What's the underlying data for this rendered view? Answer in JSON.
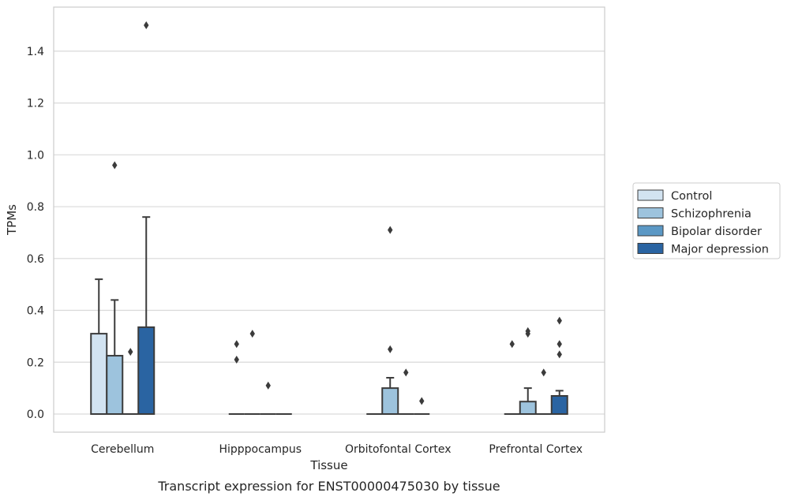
{
  "caption": "Transcript expression for ENST00000475030 by tissue",
  "chart_data": {
    "type": "box",
    "title": "",
    "xlabel": "Tissue",
    "ylabel": "TPMs",
    "ylim": [
      -0.07,
      1.57
    ],
    "yticks": [
      "0.0",
      "0.2",
      "0.4",
      "0.6",
      "0.8",
      "1.0",
      "1.2",
      "1.4"
    ],
    "grid": "horizontal",
    "legend_position": "right",
    "categories": [
      "Cerebellum",
      "Hipppocampus",
      "Orbitofontal Cortex",
      "Prefrontal Cortex"
    ],
    "series": [
      {
        "name": "Control",
        "color": "#d2e3f1",
        "boxes": [
          {
            "q1": 0,
            "median": 0,
            "q3": 0.31,
            "whislo": 0,
            "whishi": 0.52,
            "fliers": []
          },
          {
            "q1": 0,
            "median": 0,
            "q3": 0,
            "whislo": 0,
            "whishi": 0,
            "fliers": [
              0.21,
              0.27
            ]
          },
          {
            "q1": 0,
            "median": 0,
            "q3": 0,
            "whislo": 0,
            "whishi": 0,
            "fliers": []
          },
          {
            "q1": 0,
            "median": 0,
            "q3": 0,
            "whislo": 0,
            "whishi": 0,
            "fliers": [
              0.27
            ]
          }
        ]
      },
      {
        "name": "Schizophrenia",
        "color": "#9dc3dd",
        "boxes": [
          {
            "q1": 0,
            "median": 0,
            "q3": 0.225,
            "whislo": 0,
            "whishi": 0.44,
            "fliers": [
              0.96
            ]
          },
          {
            "q1": 0,
            "median": 0,
            "q3": 0,
            "whislo": 0,
            "whishi": 0,
            "fliers": [
              0.31
            ]
          },
          {
            "q1": 0,
            "median": 0,
            "q3": 0.1,
            "whislo": 0,
            "whishi": 0.14,
            "fliers": [
              0.25,
              0.71
            ]
          },
          {
            "q1": 0,
            "median": 0,
            "q3": 0.048,
            "whislo": 0,
            "whishi": 0.1,
            "fliers": [
              0.31,
              0.32
            ]
          }
        ]
      },
      {
        "name": "Bipolar disorder",
        "color": "#5b98c5",
        "boxes": [
          {
            "q1": 0,
            "median": 0,
            "q3": 0,
            "whislo": 0,
            "whishi": 0,
            "fliers": [
              0.24
            ]
          },
          {
            "q1": 0,
            "median": 0,
            "q3": 0,
            "whislo": 0,
            "whishi": 0,
            "fliers": [
              0.11
            ]
          },
          {
            "q1": 0,
            "median": 0,
            "q3": 0,
            "whislo": 0,
            "whishi": 0,
            "fliers": [
              0.16
            ]
          },
          {
            "q1": 0,
            "median": 0,
            "q3": 0,
            "whislo": 0,
            "whishi": 0,
            "fliers": [
              0.16
            ]
          }
        ]
      },
      {
        "name": "Major depression",
        "color": "#2a64a2",
        "boxes": [
          {
            "q1": 0,
            "median": 0,
            "q3": 0.335,
            "whislo": 0,
            "whishi": 0.76,
            "fliers": [
              1.5
            ]
          },
          {
            "q1": 0,
            "median": 0,
            "q3": 0,
            "whislo": 0,
            "whishi": 0,
            "fliers": []
          },
          {
            "q1": 0,
            "median": 0,
            "q3": 0,
            "whislo": 0,
            "whishi": 0,
            "fliers": [
              0.05
            ]
          },
          {
            "q1": 0,
            "median": 0,
            "q3": 0.07,
            "whislo": 0,
            "whishi": 0.09,
            "fliers": [
              0.23,
              0.27,
              0.36
            ]
          }
        ]
      }
    ]
  }
}
